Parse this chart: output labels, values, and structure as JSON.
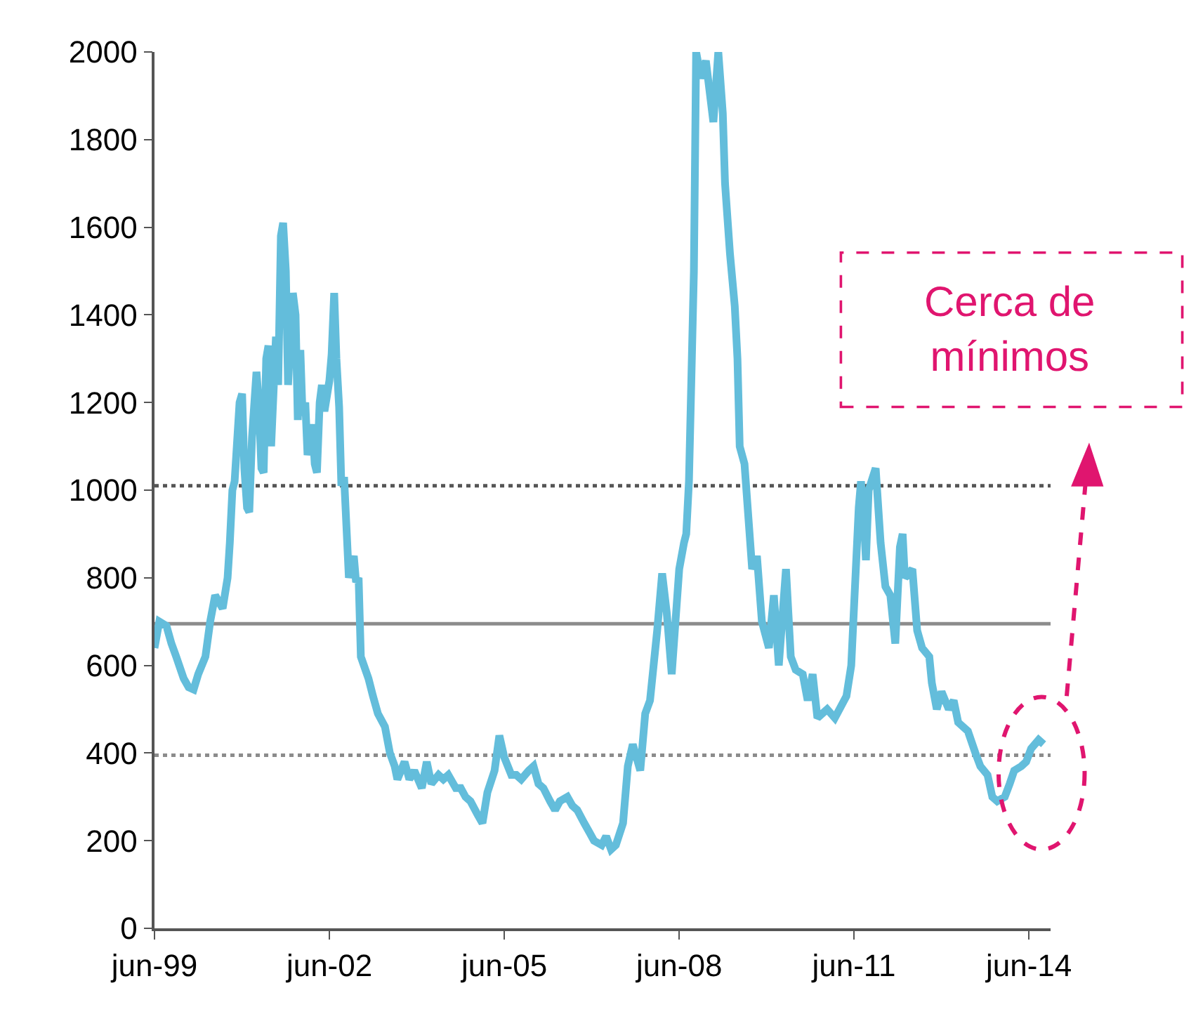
{
  "chart_data": {
    "type": "line",
    "x": [
      "1999-06-01",
      "1999-07-01",
      "1999-08-15",
      "1999-09-15",
      "1999-10-15",
      "1999-12-01",
      "2000-01-01",
      "2000-02-01",
      "2000-03-01",
      "2000-04-15",
      "2000-05-15",
      "2000-06-15",
      "2000-08-01",
      "2000-09-01",
      "2000-09-15",
      "2000-10-01",
      "2000-10-15",
      "2000-11-15",
      "2000-12-01",
      "2000-12-15",
      "2001-01-01",
      "2001-01-15",
      "2001-02-01",
      "2001-03-01",
      "2001-03-15",
      "2001-04-01",
      "2001-04-15",
      "2001-05-01",
      "2001-05-15",
      "2001-06-01",
      "2001-07-01",
      "2001-07-15",
      "2001-08-01",
      "2001-08-15",
      "2001-09-01",
      "2001-09-15",
      "2001-10-15",
      "2001-11-01",
      "2001-11-15",
      "2001-12-01",
      "2001-12-15",
      "2002-01-01",
      "2002-01-15",
      "2002-02-15",
      "2002-03-01",
      "2002-03-15",
      "2002-04-01",
      "2002-04-15",
      "2002-05-01",
      "2002-06-01",
      "2002-06-15",
      "2002-07-01",
      "2002-07-15",
      "2002-08-01",
      "2002-08-15",
      "2002-09-01",
      "2002-10-01",
      "2002-11-01",
      "2002-11-15",
      "2002-12-01",
      "2002-12-15",
      "2003-02-01",
      "2003-03-01",
      "2003-04-01",
      "2003-05-15",
      "2003-06-15",
      "2003-07-15",
      "2003-08-01",
      "2003-09-15",
      "2003-10-15",
      "2003-11-15",
      "2004-01-01",
      "2004-02-01",
      "2004-03-01",
      "2004-04-15",
      "2004-05-15",
      "2004-06-15",
      "2004-08-01",
      "2004-09-01",
      "2004-10-01",
      "2004-11-01",
      "2004-12-15",
      "2005-01-15",
      "2005-02-15",
      "2005-04-01",
      "2005-05-01",
      "2005-06-01",
      "2005-07-15",
      "2005-08-15",
      "2005-09-15",
      "2005-11-01",
      "2005-12-01",
      "2006-01-01",
      "2006-02-01",
      "2006-03-15",
      "2006-04-15",
      "2006-05-15",
      "2006-07-01",
      "2006-08-01",
      "2006-09-01",
      "2006-10-15",
      "2006-11-15",
      "2006-12-15",
      "2007-02-01",
      "2007-03-01",
      "2007-04-01",
      "2007-05-01",
      "2007-06-15",
      "2007-07-15",
      "2007-08-15",
      "2007-10-01",
      "2007-11-01",
      "2007-12-01",
      "2008-01-15",
      "2008-02-15",
      "2008-03-15",
      "2008-04-15",
      "2008-06-01",
      "2008-07-01",
      "2008-07-15",
      "2008-08-01",
      "2008-09-01",
      "2008-09-15",
      "2008-10-15",
      "2008-11-15",
      "2009-01-01",
      "2009-02-01",
      "2009-03-01",
      "2009-03-15",
      "2009-04-15",
      "2009-05-15",
      "2009-06-01",
      "2009-06-15",
      "2009-07-15",
      "2009-09-01",
      "2009-10-01",
      "2009-11-01",
      "2009-12-15",
      "2010-01-15",
      "2010-02-15",
      "2010-04-01",
      "2010-05-01",
      "2010-06-01",
      "2010-07-15",
      "2010-08-15",
      "2010-09-15",
      "2010-10-15",
      "2010-12-15",
      "2011-02-01",
      "2011-04-15",
      "2011-05-15",
      "2011-07-01",
      "2011-07-15",
      "2011-08-01",
      "2011-08-15",
      "2011-09-01",
      "2011-10-15",
      "2011-11-15",
      "2011-12-15",
      "2012-01-15",
      "2012-02-15",
      "2012-03-15",
      "2012-04-01",
      "2012-04-15",
      "2012-06-01",
      "2012-07-01",
      "2012-08-01",
      "2012-09-15",
      "2012-10-01",
      "2012-11-01",
      "2012-12-01",
      "2013-01-15",
      "2013-02-15",
      "2013-03-15",
      "2013-05-15",
      "2013-07-01",
      "2013-08-01",
      "2013-09-15",
      "2013-10-15",
      "2013-11-15",
      "2014-01-01",
      "2014-02-01",
      "2014-03-01",
      "2014-04-15",
      "2014-05-15",
      "2014-06-15",
      "2014-08-01",
      "2014-09-01"
    ],
    "series": [
      {
        "color": "#63bddb",
        "values": [
          640,
          700,
          690,
          650,
          620,
          570,
          550,
          545,
          580,
          620,
          700,
          760,
          730,
          800,
          880,
          1000,
          1020,
          1200,
          1220,
          1050,
          960,
          950,
          1120,
          1270,
          1200,
          1050,
          1040,
          1300,
          1330,
          1100,
          1350,
          1240,
          1580,
          1610,
          1500,
          1240,
          1450,
          1400,
          1160,
          1320,
          1170,
          1200,
          1080,
          1150,
          1060,
          1040,
          1200,
          1240,
          1180,
          1250,
          1310,
          1450,
          1300,
          1190,
          1010,
          1030,
          800,
          850,
          790,
          800,
          620,
          570,
          530,
          490,
          460,
          400,
          370,
          340,
          380,
          340,
          360,
          320,
          380,
          330,
          350,
          340,
          350,
          320,
          320,
          300,
          290,
          260,
          240,
          310,
          360,
          440,
          390,
          350,
          350,
          340,
          360,
          370,
          330,
          320,
          290,
          270,
          290,
          300,
          280,
          270,
          240,
          220,
          200,
          190,
          210,
          180,
          190,
          240,
          370,
          420,
          360,
          490,
          520,
          680,
          810,
          720,
          580,
          820,
          880,
          900,
          1020,
          1500,
          2000,
          1940,
          1980,
          1840,
          2000,
          1860,
          1700,
          1540,
          1420,
          1300,
          1100,
          1060,
          820,
          850,
          700,
          640,
          760,
          600,
          820,
          620,
          590,
          580,
          520,
          580,
          480,
          500,
          480,
          530,
          600,
          960,
          1020,
          940,
          840,
          1000,
          1050,
          880,
          780,
          760,
          650,
          870,
          900,
          800,
          820,
          680,
          640,
          620,
          560,
          500,
          540,
          500,
          520,
          470,
          450,
          400,
          370,
          350,
          300,
          290,
          300,
          330,
          360,
          370,
          380,
          410,
          430,
          420
        ]
      }
    ],
    "xlim": [
      "1999-06-01",
      "2014-10-15"
    ],
    "xticks": [
      {
        "value": "1999-06-01",
        "label": "jun-99"
      },
      {
        "value": "2002-06-01",
        "label": "jun-02"
      },
      {
        "value": "2005-06-01",
        "label": "jun-05"
      },
      {
        "value": "2008-06-01",
        "label": "jun-08"
      },
      {
        "value": "2011-06-01",
        "label": "jun-11"
      },
      {
        "value": "2014-06-01",
        "label": "jun-14"
      }
    ],
    "ylim": [
      0,
      2000
    ],
    "yticks": [
      0,
      200,
      400,
      600,
      800,
      1000,
      1200,
      1400,
      1600,
      1800,
      2000
    ],
    "grid": false,
    "marker": "none",
    "line_style": "solid",
    "ref_lines": [
      {
        "axis": "y",
        "value": 1010,
        "color": "#555555",
        "line_style": "dotted"
      },
      {
        "axis": "y",
        "value": 695,
        "color": "#8c8c8c",
        "line_style": "solid"
      },
      {
        "axis": "y",
        "value": 395,
        "color": "#8c8c8c",
        "line_style": "dotted"
      }
    ],
    "annotations": [
      "Cerca de\nmínimos"
    ]
  }
}
